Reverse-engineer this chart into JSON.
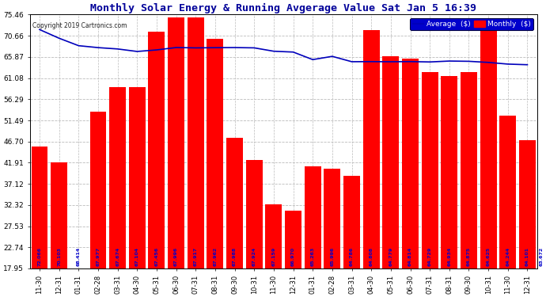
{
  "title": "Monthly Solar Energy & Running Avgerage Value Sat Jan 5 16:39",
  "copyright": "Copyright 2019 Cartronics.com",
  "categories": [
    "11-30",
    "12-31",
    "01-31",
    "02-28",
    "03-31",
    "04-30",
    "05-31",
    "06-30",
    "07-31",
    "08-31",
    "09-30",
    "10-31",
    "11-30",
    "12-31",
    "01-31",
    "02-28",
    "03-31",
    "04-30",
    "05-31",
    "06-30",
    "07-31",
    "08-31",
    "09-30",
    "10-31",
    "11-30",
    "12-31"
  ],
  "bar_heights": [
    45.5,
    42.0,
    18.0,
    53.5,
    59.0,
    59.0,
    71.5,
    74.8,
    74.8,
    70.0,
    47.5,
    42.5,
    32.5,
    31.0,
    41.0,
    40.5,
    39.0,
    72.0,
    66.0,
    65.5,
    62.5,
    61.5,
    62.5,
    74.5,
    52.5,
    47.0
  ],
  "avg_vals": [
    72.066,
    70.103,
    68.414,
    67.977,
    67.674,
    67.104,
    67.456,
    67.996,
    67.917,
    67.962,
    67.988,
    67.924,
    67.159,
    66.97,
    65.263,
    65.996,
    64.786,
    64.808,
    64.779,
    64.814,
    64.729,
    64.934,
    64.875,
    64.625,
    64.244,
    64.101
  ],
  "bar_label_vals": [
    "72.066",
    "70.103",
    "68.414",
    "67.977",
    "67.674",
    "67.104",
    "67.456",
    "67.996",
    "67.917",
    "67.962",
    "67.988",
    "67.924",
    "67.159",
    "66.970",
    "65.263",
    "65.996",
    "64.786",
    "64.808",
    "64.779",
    "64.814",
    "64.729",
    "64.934",
    "64.875",
    "64.625",
    "64.244",
    "64.101"
  ],
  "last_label": "63.672",
  "bar_color": "#ff0000",
  "avg_line_color": "#0000bb",
  "bar_label_color": "#0000cc",
  "title_color": "#000099",
  "background_color": "#ffffff",
  "grid_color": "#bbbbbb",
  "legend_bg_color": "#0000cc",
  "legend_text_color": "#ffffff",
  "ylim_min": 17.95,
  "ylim_max": 75.46,
  "yticks": [
    17.95,
    22.74,
    27.53,
    32.32,
    37.12,
    41.91,
    46.7,
    51.49,
    56.29,
    61.08,
    65.87,
    70.66,
    75.46
  ],
  "legend_avg_label": "Average  ($)",
  "legend_monthly_label": "Monthly  ($)",
  "fig_width": 6.9,
  "fig_height": 3.75,
  "dpi": 100
}
